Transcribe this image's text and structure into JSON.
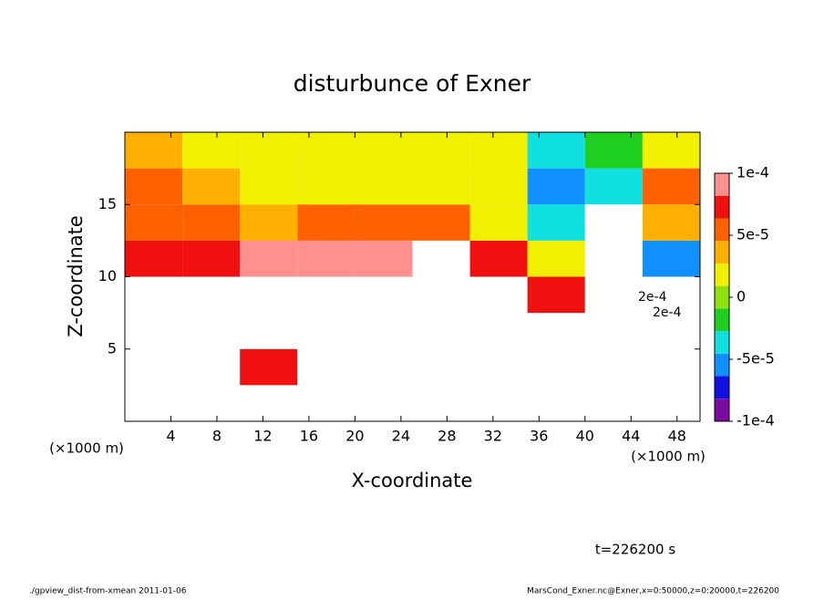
{
  "chart_data": {
    "type": "contour",
    "title": "disturbunce of Exner",
    "x_label": "X-coordinate",
    "y_label": "Z-coordinate",
    "x_unit_label": "(×1000 m)",
    "y_unit_label": "(×1000 m)",
    "time_label": "t=226200 s",
    "footer_left": "./gpview_dist-from-xmean   2011-01-06",
    "footer_right": "MarsCond_Exner.nc@Exner,x=0:50000,z=0:20000,t=226200",
    "annotations": [
      "2e-4",
      "2e-4"
    ],
    "xlim": [
      0,
      50
    ],
    "ylim": [
      0,
      20
    ],
    "xticks": [
      4,
      8,
      12,
      16,
      20,
      24,
      28,
      32,
      36,
      40,
      44,
      48
    ],
    "yticks": [
      5,
      10,
      15
    ],
    "x_edges": [
      0,
      5,
      10,
      15,
      20,
      25,
      30,
      35,
      40,
      45,
      50
    ],
    "z_edges": [
      0,
      2.5,
      5,
      7.5,
      10,
      12.5,
      15,
      17.5,
      20
    ],
    "values": [
      [
        -0.0003,
        0.0003,
        0.0002,
        0.0003,
        0.0002,
        0.0003,
        0.0002,
        0.0003,
        0.0003,
        -0.0002
      ],
      [
        -0.0002,
        0.0002,
        8e-05,
        0.0003,
        0.0003,
        0.0002,
        0.0002,
        0.0003,
        0.0004,
        -0.0003
      ],
      [
        0.0002,
        0.0002,
        0.0002,
        0.0002,
        0.00015,
        0.0002,
        0.0002,
        0.00015,
        -0.0002,
        -0.0003
      ],
      [
        0.00012,
        0.00015,
        0.0002,
        0.00015,
        0.0002,
        0.0002,
        0.00015,
        8e-05,
        -0.0002,
        -0.0002
      ],
      [
        7e-05,
        8e-05,
        9e-05,
        9e-05,
        0.0001,
        0.00011,
        7e-05,
        2e-05,
        -0.0002,
        -5e-05
      ],
      [
        5e-05,
        5e-05,
        4e-05,
        5e-05,
        6e-05,
        5e-05,
        2e-05,
        -3e-05,
        -0.0002,
        3e-05
      ],
      [
        6e-05,
        3e-05,
        2e-05,
        2e-05,
        2e-05,
        2e-05,
        1e-05,
        -5e-05,
        -4e-05,
        5e-05
      ],
      [
        4e-05,
        1e-05,
        1e-05,
        2e-05,
        2e-05,
        1e-05,
        1e-05,
        -4e-05,
        -2e-05,
        1e-05
      ]
    ],
    "colorbar_lim": [
      -0.0001,
      0.0001
    ],
    "colorbar_ticks": [
      {
        "value": -0.0001,
        "label": "-1e-4"
      },
      {
        "value": -5e-05,
        "label": "-5e-5"
      },
      0,
      {
        "value": 5e-05,
        "label": "5e-5"
      },
      {
        "value": 0.0001,
        "label": "1e-4"
      }
    ],
    "colormap": [
      "#7a0aa0",
      "#1010e0",
      "#1090ff",
      "#10e0e0",
      "#20d020",
      "#90e010",
      "#f0f000",
      "#ffb000",
      "#ff6000",
      "#f01010",
      "#ff9090"
    ],
    "out_of_range_color": "#ffffff"
  }
}
